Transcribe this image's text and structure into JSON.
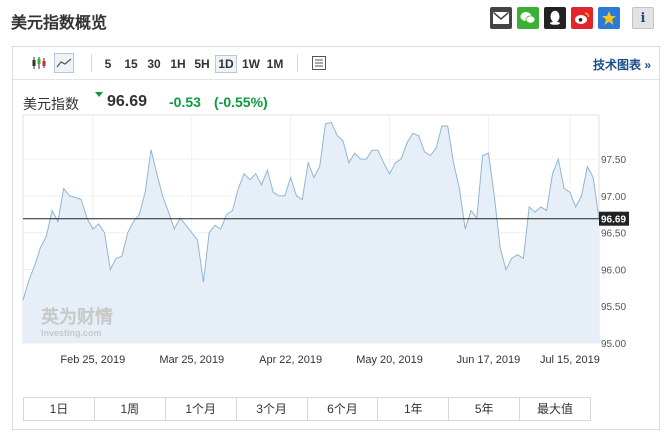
{
  "header": {
    "title": "美元指数概览",
    "share_icons": [
      {
        "name": "mail-icon",
        "color": "#444444"
      },
      {
        "name": "wechat-icon",
        "color": "#3cb034"
      },
      {
        "name": "qq-icon",
        "color": "#222222"
      },
      {
        "name": "weibo-icon",
        "color": "#e0262b"
      },
      {
        "name": "qzone-icon",
        "color": "#2b7bd6"
      },
      {
        "name": "info-icon",
        "color": "#d7d7d7"
      }
    ]
  },
  "toolbar": {
    "timeframes": [
      "5",
      "15",
      "30",
      "1H",
      "5H",
      "1D",
      "1W",
      "1M"
    ],
    "active_timeframe": "1D",
    "tech_chart_link": "技术图表 »"
  },
  "quote": {
    "name": "美元指数",
    "price": "96.69",
    "change": "-0.53",
    "change_pct": "(-0.55%)",
    "down_color": "#0b9b3f"
  },
  "ranges": [
    "1日",
    "1周",
    "1个月",
    "3个月",
    "6个月",
    "1年",
    "5年",
    "最大值"
  ],
  "chart_data": {
    "type": "area",
    "title": "",
    "xlabel": "",
    "ylabel": "",
    "ylim": [
      95.0,
      98.1
    ],
    "yticks": [
      "95.00",
      "95.50",
      "96.00",
      "96.50",
      "97.00",
      "97.50"
    ],
    "xticks": [
      "Feb 25, 2019",
      "Mar 25, 2019",
      "Apr 22, 2019",
      "May 20, 2019",
      "Jun 17, 2019",
      "Jul 15, 2019"
    ],
    "current_price_label": "96.69",
    "current_price": 96.69,
    "line_color": "#8fb6d4",
    "fill_color": "#e6eff7",
    "watermark_cn": "英为财情",
    "watermark_en": "Investing.com",
    "series": [
      {
        "values": [
          95.58,
          95.85,
          96.05,
          96.3,
          96.45,
          96.8,
          96.65,
          97.1,
          97.0,
          96.98,
          96.95,
          96.7,
          96.55,
          96.62,
          96.5,
          96.0,
          96.15,
          96.18,
          96.5,
          96.65,
          96.75,
          97.05,
          97.63,
          97.3,
          97.0,
          96.78,
          96.55,
          96.7,
          96.6,
          96.5,
          96.4,
          95.83,
          96.5,
          96.6,
          96.55,
          96.75,
          96.8,
          97.1,
          97.3,
          97.22,
          97.3,
          97.15,
          97.35,
          97.05,
          97.0,
          97.0,
          97.25,
          97.0,
          96.95,
          97.45,
          97.25,
          97.4,
          97.98,
          98.0,
          97.82,
          97.75,
          97.45,
          97.58,
          97.5,
          97.5,
          97.62,
          97.62,
          97.45,
          97.3,
          97.45,
          97.5,
          97.72,
          97.85,
          97.82,
          97.6,
          97.55,
          97.65,
          97.95,
          97.95,
          97.45,
          97.1,
          96.55,
          96.8,
          96.7,
          97.55,
          97.58,
          97.0,
          96.3,
          96.0,
          96.15,
          96.2,
          96.15,
          96.85,
          96.78,
          96.85,
          96.8,
          97.3,
          97.5,
          97.1,
          97.05,
          96.85,
          97.0,
          97.4,
          97.25,
          96.69
        ]
      }
    ]
  }
}
